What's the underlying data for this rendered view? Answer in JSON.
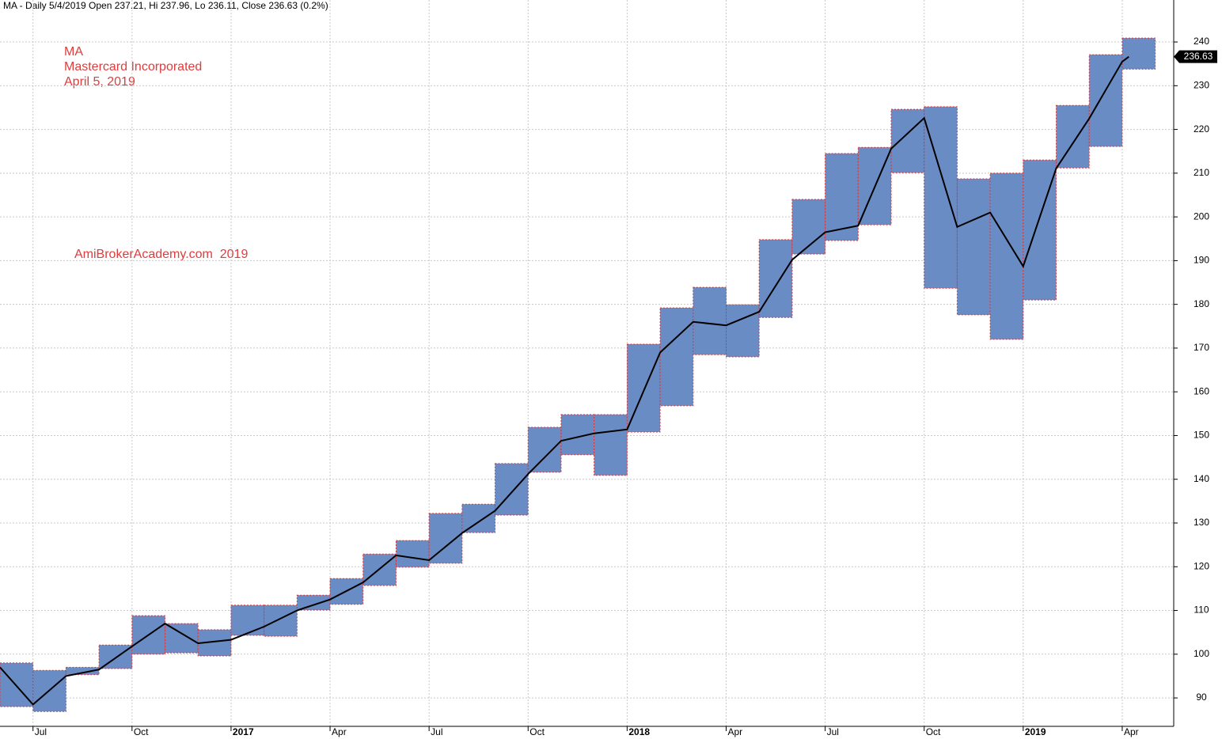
{
  "chart_data": {
    "type": "box-range",
    "title": "MA - Daily 5/4/2019 Open 237.21, Hi 237.96, Lo 236.11, Close 236.63 (0.2%)",
    "annotations": [
      "MA",
      "Mastercard Incorporated",
      "April 5, 2019",
      "AmiBrokerAcademy.com  2019"
    ],
    "x": [
      0,
      1,
      2,
      3,
      4,
      5,
      6,
      7,
      8,
      9,
      10,
      11,
      12,
      13,
      14,
      15,
      16,
      17,
      18,
      19,
      20,
      21,
      22,
      23,
      24,
      25,
      26,
      27,
      28,
      29,
      30,
      31,
      32,
      33,
      34
    ],
    "high": [
      98.0,
      96.3,
      97.0,
      102.1,
      108.8,
      107.0,
      105.6,
      111.2,
      111.2,
      113.5,
      117.3,
      122.9,
      126.0,
      132.2,
      134.3,
      143.6,
      151.9,
      154.8,
      154.8,
      170.9,
      179.2,
      183.9,
      179.9,
      194.8,
      204.0,
      214.5,
      215.9,
      224.6,
      225.2,
      208.7,
      210.0,
      213.0,
      225.5,
      237.1,
      240.9
    ],
    "low": [
      88.0,
      86.9,
      95.3,
      96.7,
      100.0,
      100.3,
      99.6,
      104.3,
      104.1,
      110.1,
      111.4,
      115.7,
      119.9,
      120.8,
      127.8,
      131.8,
      141.6,
      145.6,
      140.9,
      150.8,
      156.8,
      168.5,
      168.0,
      177.0,
      191.5,
      194.6,
      198.2,
      210.1,
      183.7,
      177.6,
      172.0,
      181.0,
      211.2,
      216.1,
      233.8
    ],
    "box_color": "#6a8cc4",
    "box_border": "#e03030",
    "line": {
      "x": [
        0,
        1,
        2,
        3,
        4,
        5,
        6,
        7,
        8,
        9,
        10,
        11,
        12,
        13,
        14,
        15,
        16,
        17,
        18,
        19,
        20,
        21,
        22,
        23,
        24,
        25,
        26,
        27,
        28,
        29,
        30,
        31,
        32,
        33,
        34,
        34.2
      ],
      "values": [
        97,
        88.5,
        95,
        96.5,
        101.8,
        107,
        102.5,
        103.3,
        106.3,
        110,
        112.5,
        116.4,
        122.6,
        121.5,
        127.7,
        132.8,
        141.2,
        148.8,
        150.5,
        151.4,
        169,
        176,
        175.2,
        178.3,
        190.2,
        196.5,
        198,
        215.6,
        222.6,
        197.7,
        201,
        188.7,
        211.1,
        222.5,
        235.5,
        236.63
      ],
      "color": "#000000"
    },
    "last_value": 236.63,
    "xlim": [
      0,
      35.56
    ],
    "ylim": [
      83.5,
      249.6
    ],
    "xticks": [
      {
        "value": 1,
        "label": "Jul"
      },
      {
        "value": 4,
        "label": "Oct"
      },
      {
        "value": 7,
        "label": "2017"
      },
      {
        "value": 10,
        "label": "Apr"
      },
      {
        "value": 13,
        "label": "Jul"
      },
      {
        "value": 16,
        "label": "Oct"
      },
      {
        "value": 19,
        "label": "2018"
      },
      {
        "value": 22,
        "label": "Apr"
      },
      {
        "value": 25,
        "label": "Jul"
      },
      {
        "value": 28,
        "label": "Oct"
      },
      {
        "value": 31,
        "label": "2019"
      },
      {
        "value": 34,
        "label": "Apr"
      }
    ],
    "yticks": [
      90,
      100,
      110,
      120,
      130,
      140,
      150,
      160,
      170,
      180,
      190,
      200,
      210,
      220,
      230,
      240
    ],
    "grid": true
  }
}
